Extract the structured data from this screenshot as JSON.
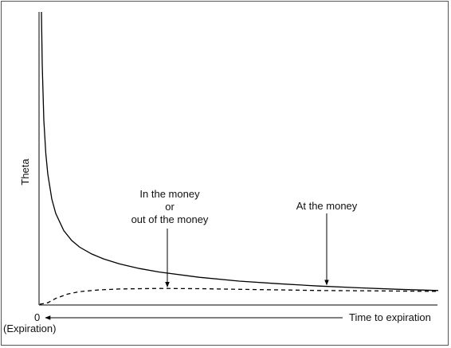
{
  "chart_data": {
    "type": "line",
    "title": "",
    "ylabel": "Theta",
    "xlabel": "Time to expiration",
    "x_origin_label": "0",
    "x_origin_sublabel": "(Expiration)",
    "grid": false,
    "legend": "none",
    "x_direction": "leftward",
    "series": [
      {
        "name": "At the money",
        "style": "solid",
        "color": "#000000",
        "x": [
          0.004,
          0.006,
          0.01,
          0.015,
          0.02,
          0.03,
          0.04,
          0.06,
          0.08,
          0.1,
          0.13,
          0.16,
          0.2,
          0.25,
          0.3,
          0.4,
          0.5,
          0.6,
          0.7,
          0.8,
          0.9,
          1.0
        ],
        "y": [
          1.0,
          0.82,
          0.63,
          0.515,
          0.445,
          0.36,
          0.31,
          0.252,
          0.218,
          0.195,
          0.172,
          0.155,
          0.138,
          0.122,
          0.11,
          0.092,
          0.079,
          0.07,
          0.062,
          0.056,
          0.051,
          0.047
        ]
      },
      {
        "name": "In the money or out of the money",
        "style": "dashed",
        "color": "#000000",
        "x": [
          0.0,
          0.02,
          0.04,
          0.07,
          0.1,
          0.15,
          0.2,
          0.3,
          0.4,
          0.5,
          0.6,
          0.7,
          0.8,
          0.9,
          1.0
        ],
        "y": [
          0.0,
          0.005,
          0.02,
          0.035,
          0.043,
          0.049,
          0.052,
          0.054,
          0.053,
          0.051,
          0.049,
          0.047,
          0.046,
          0.045,
          0.044
        ]
      }
    ],
    "annotations": [
      {
        "lines": [
          "In the money",
          "or",
          "out of the money"
        ],
        "target_series": 1,
        "target_x": 0.32
      },
      {
        "lines": [
          "At the money"
        ],
        "target_series": 0,
        "target_x": 0.72
      }
    ]
  }
}
